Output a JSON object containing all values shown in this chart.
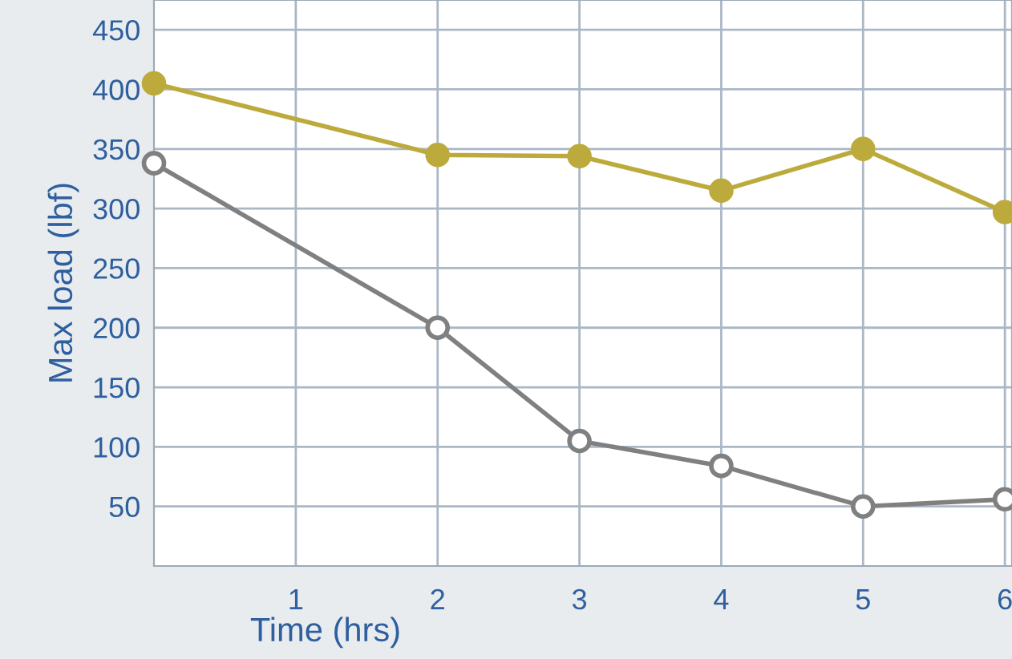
{
  "chart_data": {
    "type": "line",
    "xlabel": "Time (hrs)",
    "ylabel": "Max load (lbf)",
    "x": [
      0,
      2,
      3,
      4,
      5,
      6
    ],
    "series": [
      {
        "color": "#bcab3c",
        "values": [
          405,
          345,
          344,
          315,
          350,
          297
        ]
      },
      {
        "color": "#808080",
        "values": [
          338,
          200,
          105,
          84,
          50,
          56
        ]
      }
    ],
    "xlim": [
      0,
      6.05
    ],
    "xticks": [
      1,
      2,
      3,
      4,
      5,
      6
    ],
    "ylim": [
      0,
      475
    ],
    "yticks": [
      50,
      100,
      150,
      200,
      250,
      300,
      350,
      400,
      450
    ],
    "grid": true,
    "marker": "circle",
    "line_style": "solid"
  }
}
